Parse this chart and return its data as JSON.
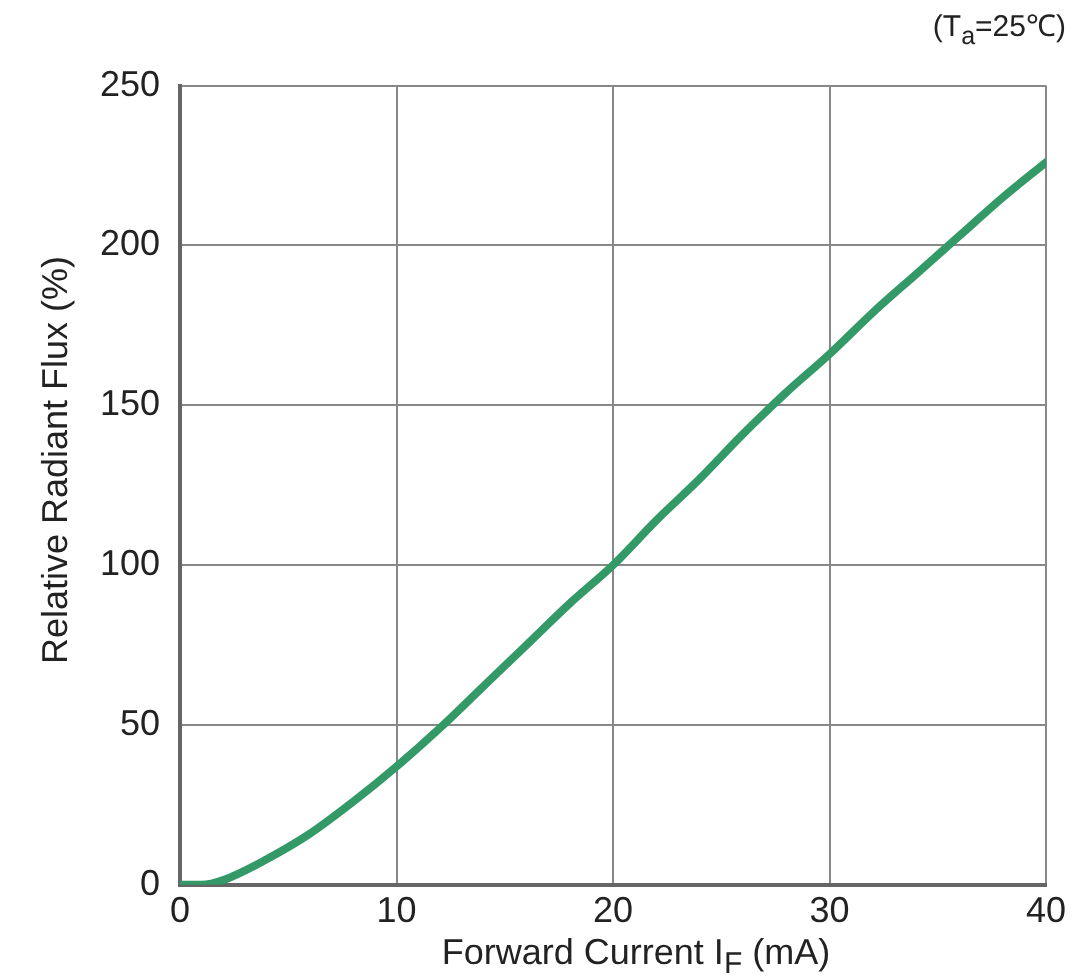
{
  "chart_data": {
    "type": "line",
    "xlabel": "Forward Current I$_{F}$ (mA)",
    "ylabel": "Relative Radiant Flux  (%)",
    "annotations": [
      "(T$_{a}$=25℃)"
    ],
    "x": [
      0,
      1,
      2,
      4,
      6,
      8,
      10,
      12,
      14,
      16,
      18,
      20,
      22,
      24,
      26,
      28,
      30,
      32,
      34,
      36,
      38,
      40
    ],
    "series": [
      {
        "color": "#339966",
        "values": [
          0,
          0,
          1.5,
          8,
          16,
          26,
          37,
          49,
          62,
          75,
          88,
          100,
          114,
          127,
          141,
          154,
          166,
          179,
          191,
          203,
          215,
          226
        ]
      }
    ],
    "xlim": [
      0,
      40
    ],
    "xticks": [
      0,
      10,
      20,
      30,
      40
    ],
    "ylim": [
      0,
      250
    ],
    "yticks": [
      0,
      50,
      100,
      150,
      200,
      250
    ],
    "grid": true,
    "legend": false,
    "marker": "none",
    "line_style": "solid"
  }
}
